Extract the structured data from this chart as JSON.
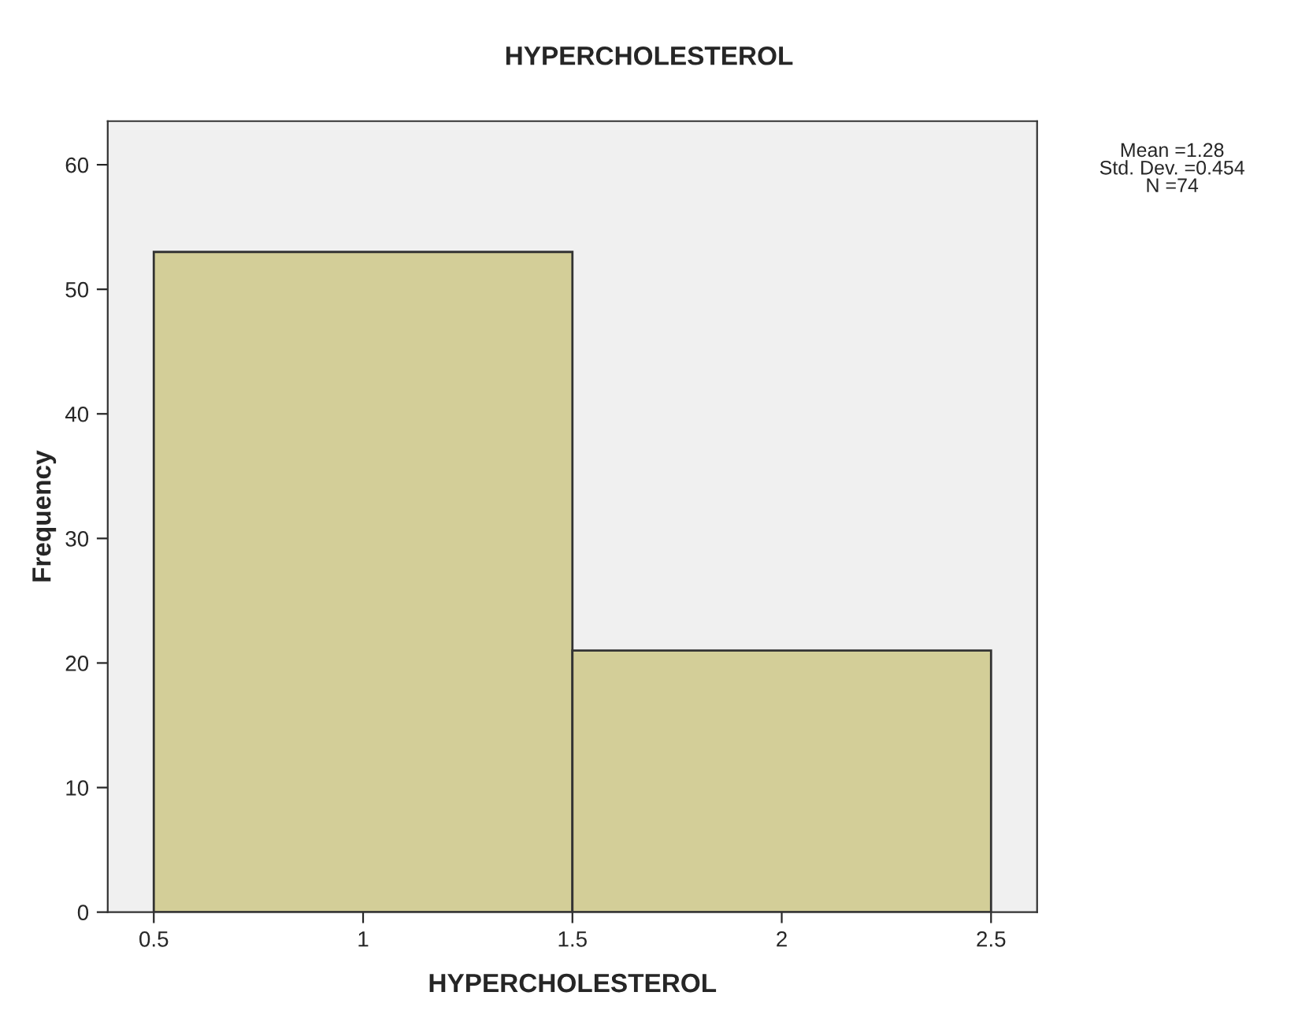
{
  "chart_data": {
    "type": "histogram",
    "title": "HYPERCHOLESTEROL",
    "xlabel": "HYPERCHOLESTEROL",
    "ylabel": "Frequency",
    "bins": [
      0.5,
      1.5,
      2.5
    ],
    "values": [
      53,
      21
    ],
    "color": "#d3ce98",
    "xlim": [
      0.39,
      2.61
    ],
    "xticks": [
      0.5,
      1,
      1.5,
      2,
      2.5
    ],
    "ylim": [
      0,
      63.5
    ],
    "yticks": [
      0,
      10,
      20,
      30,
      40,
      50,
      60
    ],
    "grid": false,
    "annotations": [
      "Mean =1.28\nStd. Dev. =0.454\nN =74"
    ]
  }
}
